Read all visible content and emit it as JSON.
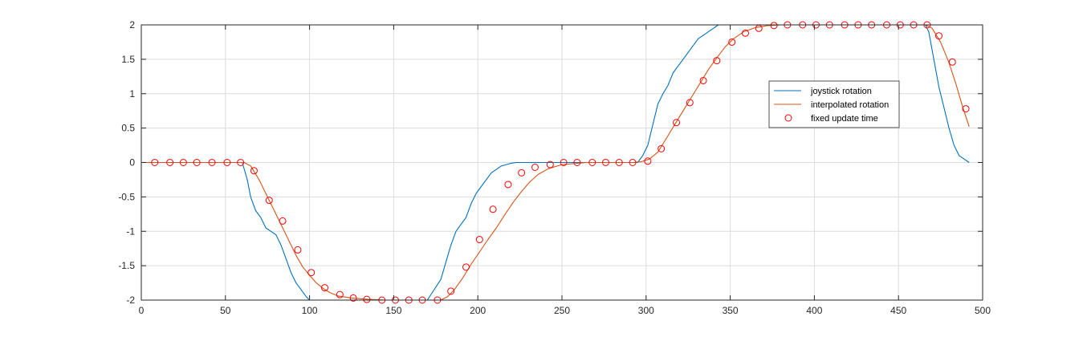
{
  "chart_data": {
    "type": "line",
    "title": "",
    "xlabel": "",
    "ylabel": "",
    "xlim": [
      0,
      500
    ],
    "ylim": [
      -2,
      2
    ],
    "x_ticks": [
      0,
      50,
      100,
      150,
      200,
      250,
      300,
      350,
      400,
      450,
      500
    ],
    "y_ticks": [
      -2,
      -1.5,
      -1,
      -0.5,
      0,
      0.5,
      1,
      1.5,
      2
    ],
    "x_tick_labels": [
      "0",
      "50",
      "100",
      "150",
      "200",
      "250",
      "300",
      "350",
      "400",
      "450",
      "500"
    ],
    "y_tick_labels": [
      "-2",
      "-1.5",
      "-1",
      "-0.5",
      "0",
      "0.5",
      "1",
      "1.5",
      "2"
    ],
    "grid": true,
    "legend_position": "right-upper, inside",
    "series": [
      {
        "name": "joystick rotation",
        "color": "#0072BD",
        "style": "line",
        "x": [
          0,
          60,
          63,
          65,
          68,
          71,
          74,
          77,
          80,
          83,
          86,
          89,
          92,
          95,
          98,
          100,
          130,
          170,
          178,
          181,
          184,
          187,
          190,
          193,
          196,
          199,
          202,
          205,
          208,
          211,
          214,
          217,
          220,
          223,
          225,
          295,
          298,
          301,
          304,
          307,
          310,
          313,
          316,
          319,
          322,
          325,
          328,
          331,
          334,
          337,
          340,
          343,
          345,
          466,
          468,
          471,
          474,
          477,
          480,
          483,
          486,
          489,
          492
        ],
        "y": [
          0,
          0,
          -0.25,
          -0.5,
          -0.7,
          -0.8,
          -0.95,
          -1.0,
          -1.05,
          -1.2,
          -1.4,
          -1.6,
          -1.75,
          -1.85,
          -1.95,
          -2.0,
          -2.0,
          -2.0,
          -1.7,
          -1.45,
          -1.2,
          -1.0,
          -0.9,
          -0.8,
          -0.6,
          -0.45,
          -0.35,
          -0.25,
          -0.15,
          -0.1,
          -0.05,
          -0.03,
          -0.01,
          0,
          0,
          0,
          0.1,
          0.25,
          0.55,
          0.85,
          1.0,
          1.12,
          1.3,
          1.4,
          1.5,
          1.6,
          1.7,
          1.8,
          1.85,
          1.9,
          1.95,
          2.0,
          2.0,
          2.0,
          1.9,
          1.5,
          1.1,
          0.8,
          0.5,
          0.25,
          0.1,
          0.05,
          0
        ],
        "y_correct_note": ""
      },
      {
        "name": "interpolated rotation",
        "color": "#D95319",
        "style": "line",
        "x": [
          0,
          61,
          65,
          70,
          75,
          80,
          84,
          88,
          92,
          96,
          100,
          104,
          108,
          112,
          117,
          125,
          135,
          145,
          160,
          178,
          182,
          186,
          191,
          196,
          201,
          206,
          211,
          216,
          221,
          226,
          231,
          236,
          242,
          250,
          265,
          292,
          297,
          302,
          307,
          312,
          317,
          322,
          327,
          332,
          337,
          342,
          347,
          352,
          358,
          365,
          372,
          380,
          466,
          470,
          475,
          480,
          484,
          488,
          492
        ],
        "y": [
          0,
          0,
          -0.05,
          -0.25,
          -0.5,
          -0.75,
          -0.95,
          -1.15,
          -1.35,
          -1.52,
          -1.64,
          -1.75,
          -1.83,
          -1.89,
          -1.94,
          -1.97,
          -1.99,
          -2.0,
          -2.0,
          -2.0,
          -1.95,
          -1.85,
          -1.68,
          -1.48,
          -1.3,
          -1.12,
          -0.95,
          -0.76,
          -0.58,
          -0.42,
          -0.28,
          -0.17,
          -0.09,
          -0.03,
          0,
          0,
          0.01,
          0.05,
          0.15,
          0.35,
          0.55,
          0.75,
          0.95,
          1.15,
          1.35,
          1.52,
          1.68,
          1.8,
          1.9,
          1.96,
          1.99,
          2.0,
          2.0,
          1.95,
          1.75,
          1.45,
          1.15,
          0.82,
          0.52
        ]
      },
      {
        "name": "fixed update time",
        "color": "#FF0000",
        "style": "markers",
        "marker": "circle-open",
        "x": [
          8,
          17,
          25,
          33,
          42,
          51,
          59,
          67,
          76,
          84,
          93,
          101,
          109,
          118,
          126,
          134,
          143,
          151,
          159,
          167,
          176,
          184,
          193,
          201,
          209,
          218,
          226,
          234,
          243,
          251,
          259,
          268,
          276,
          284,
          292,
          301,
          309,
          318,
          326,
          334,
          342,
          351,
          359,
          367,
          376,
          384,
          393,
          401,
          409,
          418,
          426,
          434,
          443,
          451,
          459,
          467,
          474,
          482,
          490
        ],
        "y": [
          0,
          0,
          0,
          0,
          0,
          0,
          0,
          -0.12,
          -0.55,
          -0.85,
          -1.27,
          -1.6,
          -1.82,
          -1.92,
          -1.97,
          -1.99,
          -2.0,
          -2.0,
          -2.0,
          -2.0,
          -2.0,
          -1.87,
          -1.52,
          -1.12,
          -0.68,
          -0.32,
          -0.15,
          -0.07,
          -0.03,
          0,
          0,
          0,
          0,
          0,
          0,
          0.02,
          0.2,
          0.58,
          0.87,
          1.19,
          1.48,
          1.75,
          1.88,
          1.95,
          1.99,
          2.0,
          2.0,
          2.0,
          2.0,
          2.0,
          2.0,
          2.0,
          2.0,
          2.0,
          2.0,
          2.0,
          1.84,
          1.46,
          0.78
        ]
      }
    ]
  },
  "legend": {
    "items": [
      {
        "label": "joystick rotation",
        "color": "#0072BD",
        "kind": "line"
      },
      {
        "label": "interpolated rotation",
        "color": "#D95319",
        "kind": "line"
      },
      {
        "label": "fixed update time",
        "color": "#FF0000",
        "kind": "marker"
      }
    ]
  },
  "colors": {
    "axis": "#262626",
    "grid": "#DCDCDC",
    "background": "#FFFFFF"
  }
}
